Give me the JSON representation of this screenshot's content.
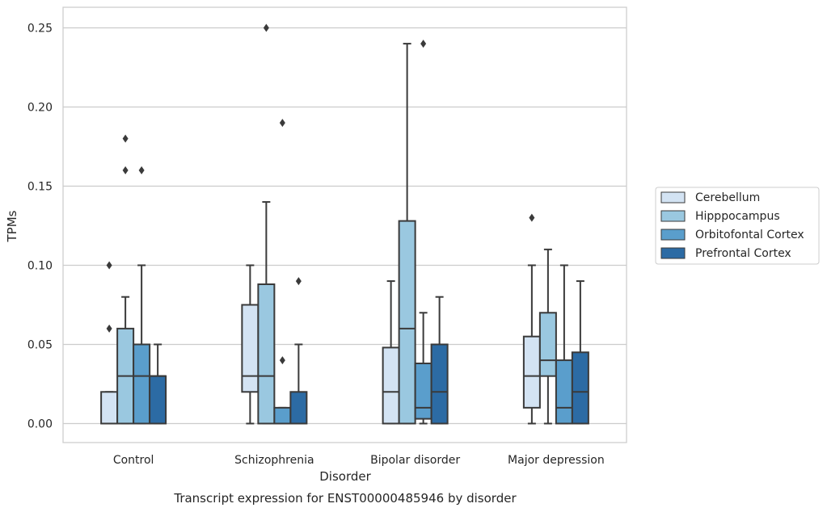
{
  "chart_data": {
    "type": "box",
    "xlabel": "Disorder",
    "ylabel": "TPMs",
    "caption": "Transcript expression for ENST00000485946 by disorder",
    "ylim": [
      -0.012,
      0.263
    ],
    "yticks": [
      0.0,
      0.05,
      0.1,
      0.15,
      0.2,
      0.25
    ],
    "ytick_labels": [
      "0.00",
      "0.05",
      "0.10",
      "0.15",
      "0.20",
      "0.25"
    ],
    "grid": "horizontal",
    "legend_position": "right",
    "categories": [
      "Control",
      "Schizophrenia",
      "Bipolar disorder",
      "Major depression"
    ],
    "series": [
      {
        "name": "Cerebellum",
        "color": "#d3e3f3",
        "boxes": [
          {
            "q1": 0.0,
            "median": 0.0,
            "q3": 0.02,
            "whisker_low": 0.0,
            "whisker_high": 0.02,
            "outliers": [
              0.06,
              0.1
            ]
          },
          {
            "q1": 0.02,
            "median": 0.03,
            "q3": 0.075,
            "whisker_low": 0.0,
            "whisker_high": 0.1,
            "outliers": []
          },
          {
            "q1": 0.0,
            "median": 0.02,
            "q3": 0.048,
            "whisker_low": 0.0,
            "whisker_high": 0.09,
            "outliers": []
          },
          {
            "q1": 0.01,
            "median": 0.03,
            "q3": 0.055,
            "whisker_low": 0.0,
            "whisker_high": 0.1,
            "outliers": [
              0.13
            ]
          }
        ]
      },
      {
        "name": "Hipppocampus",
        "color": "#9ac8e0",
        "boxes": [
          {
            "q1": 0.0,
            "median": 0.03,
            "q3": 0.06,
            "whisker_low": 0.0,
            "whisker_high": 0.08,
            "outliers": [
              0.16,
              0.18
            ]
          },
          {
            "q1": 0.0,
            "median": 0.03,
            "q3": 0.088,
            "whisker_low": 0.0,
            "whisker_high": 0.14,
            "outliers": [
              0.25
            ]
          },
          {
            "q1": 0.0,
            "median": 0.06,
            "q3": 0.128,
            "whisker_low": 0.0,
            "whisker_high": 0.24,
            "outliers": []
          },
          {
            "q1": 0.03,
            "median": 0.04,
            "q3": 0.07,
            "whisker_low": 0.0,
            "whisker_high": 0.11,
            "outliers": []
          }
        ]
      },
      {
        "name": "Orbitofontal Cortex",
        "color": "#5a9ecc",
        "boxes": [
          {
            "q1": 0.0,
            "median": 0.03,
            "q3": 0.05,
            "whisker_low": 0.0,
            "whisker_high": 0.1,
            "outliers": [
              0.16
            ]
          },
          {
            "q1": 0.0,
            "median": 0.0,
            "q3": 0.01,
            "whisker_low": 0.0,
            "whisker_high": 0.01,
            "outliers": [
              0.04,
              0.19
            ]
          },
          {
            "q1": 0.003,
            "median": 0.01,
            "q3": 0.038,
            "whisker_low": 0.0,
            "whisker_high": 0.07,
            "outliers": [
              0.24
            ]
          },
          {
            "q1": 0.0,
            "median": 0.01,
            "q3": 0.04,
            "whisker_low": 0.0,
            "whisker_high": 0.1,
            "outliers": []
          }
        ]
      },
      {
        "name": "Prefrontal Cortex",
        "color": "#2c6ba4",
        "boxes": [
          {
            "q1": 0.0,
            "median": 0.03,
            "q3": 0.03,
            "whisker_low": 0.0,
            "whisker_high": 0.05,
            "outliers": []
          },
          {
            "q1": 0.0,
            "median": 0.0,
            "q3": 0.02,
            "whisker_low": 0.0,
            "whisker_high": 0.05,
            "outliers": [
              0.09
            ]
          },
          {
            "q1": 0.0,
            "median": 0.02,
            "q3": 0.05,
            "whisker_low": 0.0,
            "whisker_high": 0.08,
            "outliers": []
          },
          {
            "q1": 0.0,
            "median": 0.02,
            "q3": 0.045,
            "whisker_low": 0.0,
            "whisker_high": 0.09,
            "outliers": []
          }
        ]
      }
    ]
  }
}
